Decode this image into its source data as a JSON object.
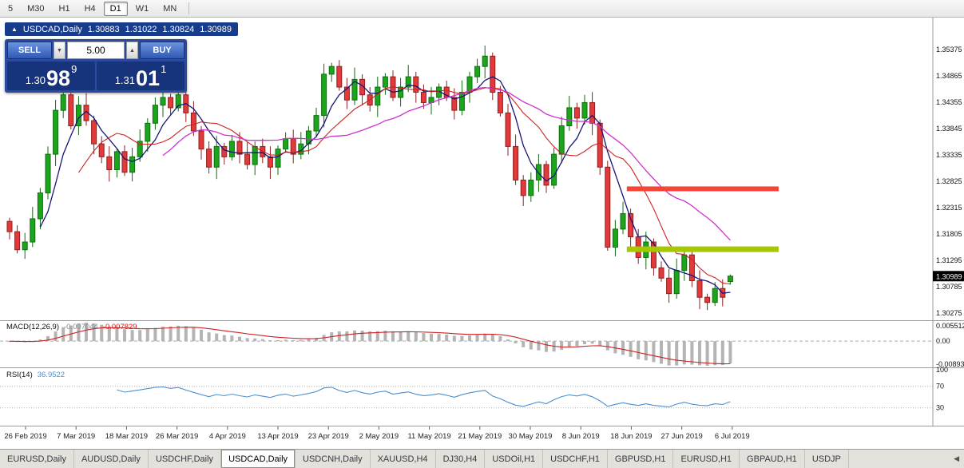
{
  "toolbar": {
    "timeframes": [
      {
        "label": "5",
        "active": false
      },
      {
        "label": "M30",
        "active": false
      },
      {
        "label": "H1",
        "active": false
      },
      {
        "label": "H4",
        "active": false
      },
      {
        "label": "D1",
        "active": true
      },
      {
        "label": "W1",
        "active": false
      },
      {
        "label": "MN",
        "active": false
      }
    ]
  },
  "chart_header": {
    "symbol_period": "USDCAD,Daily",
    "open": "1.30883",
    "high": "1.31022",
    "low": "1.30824",
    "close": "1.30989"
  },
  "trade_panel": {
    "sell_label": "SELL",
    "buy_label": "BUY",
    "volume": "5.00",
    "sell_price": {
      "prefix": "1.30",
      "big": "98",
      "sup": "9"
    },
    "buy_price": {
      "prefix": "1.31",
      "big": "01",
      "sup": "1"
    }
  },
  "icons": {
    "panel_toggle": "▲",
    "spin_up": "▲",
    "spin_down": "▼",
    "tab_scroll_left": "◀"
  },
  "price_axis": {
    "labels": [
      "1.35375",
      "1.34865",
      "1.34355",
      "1.33845",
      "1.33335",
      "1.32825",
      "1.32315",
      "1.31805",
      "1.31295",
      "1.30785",
      "1.30275"
    ],
    "current_price": "1.30989"
  },
  "colors": {
    "candle_up": "#1ca51c",
    "candle_up_stroke": "#0e6e0e",
    "candle_down": "#e23a3a",
    "candle_down_stroke": "#8f1f1f",
    "ma_fast": "#151578",
    "ma_mid": "#cc2222",
    "ma_slow": "#cc33cc",
    "resistance": "#f64438",
    "support": "#a6c800",
    "macd_histogram": "#b4b4b4",
    "macd_signal": "#cc2222",
    "rsi_line": "#4a8fd2",
    "price_tag_bg": "#000000"
  },
  "chart_data": {
    "type": "candlestick",
    "symbol": "USDCAD",
    "period": "Daily",
    "y_range": [
      1.3015,
      1.3595
    ],
    "x_labels": [
      "26 Feb 2019",
      "7 Mar 2019",
      "18 Mar 2019",
      "26 Mar 2019",
      "4 Apr 2019",
      "13 Apr 2019",
      "23 Apr 2019",
      "2 May 2019",
      "11 May 2019",
      "21 May 2019",
      "30 May 2019",
      "8 Jun 2019",
      "18 Jun 2019",
      "27 Jun 2019",
      "6 Jul 2019"
    ],
    "closes": [
      1.3185,
      1.315,
      1.3165,
      1.321,
      1.326,
      1.3335,
      1.342,
      1.345,
      1.339,
      1.343,
      1.34,
      1.3355,
      1.333,
      1.3305,
      1.334,
      1.33,
      1.333,
      1.336,
      1.3395,
      1.343,
      1.3445,
      1.3425,
      1.345,
      1.3415,
      1.338,
      1.3345,
      1.331,
      1.335,
      1.333,
      1.336,
      1.3335,
      1.3315,
      1.335,
      1.333,
      1.331,
      1.3345,
      1.3365,
      1.3335,
      1.3355,
      1.338,
      1.341,
      1.349,
      1.3505,
      1.3465,
      1.344,
      1.348,
      1.345,
      1.343,
      1.3465,
      1.3485,
      1.3445,
      1.3465,
      1.3485,
      1.3455,
      1.3435,
      1.3445,
      1.3465,
      1.3445,
      1.342,
      1.3455,
      1.3485,
      1.3505,
      1.3525,
      1.3455,
      1.3415,
      1.335,
      1.3285,
      1.3255,
      1.3285,
      1.3315,
      1.3275,
      1.3335,
      1.339,
      1.3425,
      1.3405,
      1.3435,
      1.3395,
      1.331,
      1.3155,
      1.319,
      1.322,
      1.3175,
      1.3135,
      1.3165,
      1.3115,
      1.3095,
      1.3065,
      1.311,
      1.314,
      1.309,
      1.3058,
      1.3048,
      1.3075,
      1.3058,
      1.3099
    ],
    "last_ohlc": {
      "open": 1.30883,
      "high": 1.31022,
      "low": 1.30824,
      "close": 1.30989
    },
    "overlays": {
      "ma_fast_period": 5,
      "ma_mid_period": 10,
      "ma_slow_period": 21,
      "hline_red": {
        "price": 1.3268,
        "from_idx": 80.5,
        "to_idx": 100.3
      },
      "hline_green": {
        "price": 1.3151,
        "from_idx": 80.5,
        "to_idx": 100.3
      }
    },
    "macd": {
      "label": "MACD(12,26,9)",
      "value": "-0.007044",
      "signal_value": "-0.007829",
      "axis_labels": [
        "0.005512",
        "0.00",
        "-0.00893"
      ],
      "params": [
        12,
        26,
        9
      ]
    },
    "rsi": {
      "label": "RSI(14)",
      "value": "36.9522",
      "axis_labels": [
        "100",
        "70",
        "30"
      ],
      "levels": [
        70,
        30
      ],
      "period": 14
    }
  },
  "tabbar": {
    "tabs": [
      {
        "label": "EURUSD,Daily",
        "active": false
      },
      {
        "label": "AUDUSD,Daily",
        "active": false
      },
      {
        "label": "USDCHF,Daily",
        "active": false
      },
      {
        "label": "USDCAD,Daily",
        "active": true
      },
      {
        "label": "USDCNH,Daily",
        "active": false
      },
      {
        "label": "XAUUSD,H4",
        "active": false
      },
      {
        "label": "DJ30,H4",
        "active": false
      },
      {
        "label": "USDOil,H1",
        "active": false
      },
      {
        "label": "USDCHF,H1",
        "active": false
      },
      {
        "label": "GBPUSD,H1",
        "active": false
      },
      {
        "label": "EURUSD,H1",
        "active": false
      },
      {
        "label": "GBPAUD,H1",
        "active": false
      },
      {
        "label": "USDJP",
        "active": false
      }
    ]
  }
}
